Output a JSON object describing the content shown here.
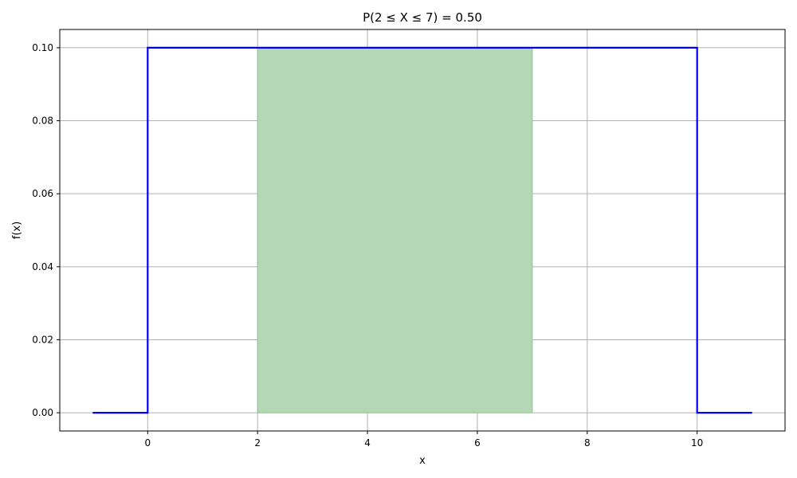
{
  "chart_data": {
    "type": "line",
    "title": "P(2 ≤ X ≤ 7) = 0.50",
    "xlabel": "x",
    "ylabel": "f(x)",
    "xlim": [
      -1.6,
      11.6
    ],
    "ylim": [
      -0.005,
      0.105
    ],
    "xticks": [
      0,
      2,
      4,
      6,
      8,
      10
    ],
    "xtick_labels": [
      "0",
      "2",
      "4",
      "6",
      "8",
      "10"
    ],
    "yticks": [
      0.0,
      0.02,
      0.04,
      0.06,
      0.08,
      0.1
    ],
    "ytick_labels": [
      "0.00",
      "0.02",
      "0.04",
      "0.06",
      "0.08",
      "0.10"
    ],
    "grid": true,
    "series": [
      {
        "x": [
          -1,
          0,
          0,
          10,
          10,
          11
        ],
        "y": [
          0,
          0,
          0.1,
          0.1,
          0,
          0
        ],
        "color": "#0000ff"
      }
    ],
    "shaded_region": {
      "x_start": 2,
      "x_end": 7,
      "y_bottom": 0,
      "y_top": 0.1,
      "color": "#b3d8b3"
    }
  }
}
